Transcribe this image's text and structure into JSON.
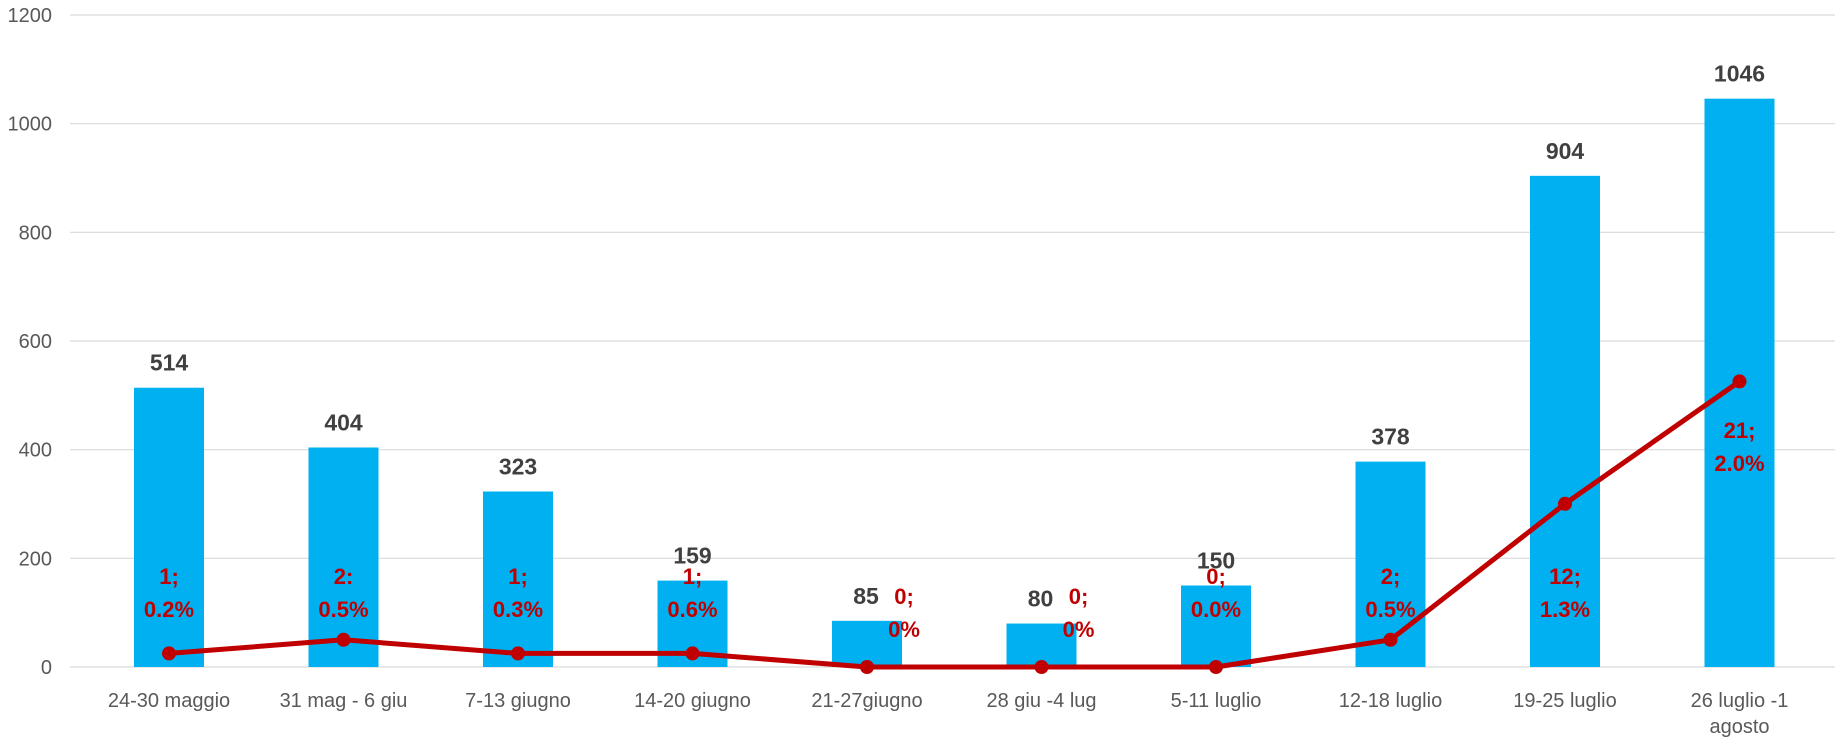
{
  "chart_data": {
    "type": "bar",
    "categories": [
      "24-30 maggio",
      "31 mag - 6 giu",
      "7-13 giugno",
      "14-20 giugno",
      "21-27giugno",
      "28 giu -4 lug",
      "5-11 luglio",
      "12-18 luglio",
      "19-25 luglio",
      "26 luglio -1 agosto"
    ],
    "series": [
      {
        "type": "bar",
        "values": [
          514,
          404,
          323,
          159,
          85,
          80,
          150,
          378,
          904,
          1046
        ],
        "color": "#00b0f0"
      },
      {
        "type": "line",
        "values": [
          1,
          2,
          1,
          1,
          0,
          0,
          0,
          2,
          12,
          21
        ],
        "percent_labels": [
          "0.2%",
          "0.5%",
          "0.3%",
          "0.6%",
          "0%",
          "0%",
          "0.0%",
          "0.5%",
          "1.3%",
          "2.0%"
        ],
        "data_labels": [
          [
            "1;",
            "0.2%"
          ],
          [
            "2:",
            "0.5%"
          ],
          [
            "1;",
            "0.3%"
          ],
          [
            "1;",
            "0.6%"
          ],
          [
            "0;",
            "0%"
          ],
          [
            "0;",
            "0%"
          ],
          [
            "0;",
            "0.0%"
          ],
          [
            "2;",
            "0.5%"
          ],
          [
            "12;",
            "1.3%"
          ],
          [
            "21;",
            "2.0%"
          ]
        ],
        "color": "#c00000"
      }
    ],
    "y_ticks": [
      0,
      200,
      400,
      600,
      800,
      1000,
      1200
    ],
    "ylim": [
      0,
      1200
    ],
    "grid": true,
    "legend": "none",
    "title": "",
    "xlabel": "",
    "ylabel": ""
  }
}
